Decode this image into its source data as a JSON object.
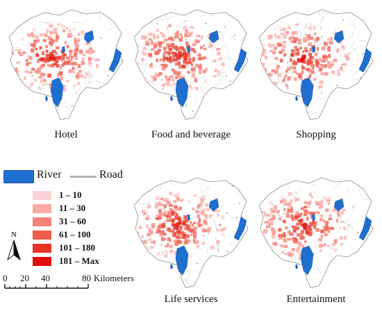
{
  "maps": [
    {
      "label": "Hotel"
    },
    {
      "label": "Food and beverage"
    },
    {
      "label": "Shopping"
    },
    {
      "label": "Life services"
    },
    {
      "label": "Entertainment"
    }
  ],
  "legend": {
    "river_label": "River",
    "road_label": "Road",
    "river_color": "#1f6fd1",
    "road_color": "#b3b3b3",
    "classes": [
      {
        "label": "1 – 10",
        "color": "#fbd4d4"
      },
      {
        "label": "11 – 30",
        "color": "#f8aaa5"
      },
      {
        "label": "31 – 60",
        "color": "#f4837a"
      },
      {
        "label": "61 – 100",
        "color": "#ef5b4c"
      },
      {
        "label": "101 – 180",
        "color": "#e93426"
      },
      {
        "label": "181 – Max",
        "color": "#e00d0d"
      }
    ]
  },
  "north_arrow": {
    "label": "N"
  },
  "scale_bar": {
    "ticks": [
      "0",
      "20",
      "40",
      "80"
    ],
    "unit": "Kilometers"
  }
}
